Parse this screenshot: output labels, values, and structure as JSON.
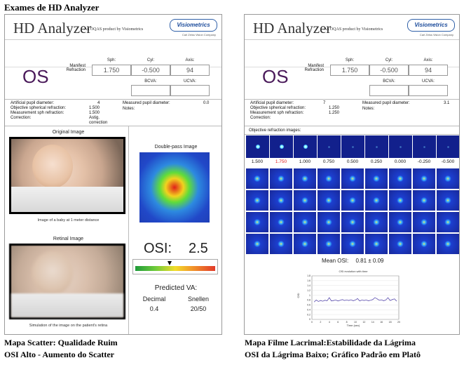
{
  "page": {
    "title": "Exames de HD Analyzer"
  },
  "left": {
    "header": {
      "title": "HD Analyzer",
      "subtitle": "An OQAS product by Visiometrics",
      "logo": "Visiometrics",
      "logo_sub": "Carl Zeiss Vision Company"
    },
    "eye": "OS",
    "refraction_label": "Manifest Refraction",
    "sph_label": "Sph:",
    "cyl_label": "Cyl:",
    "axis_label": "Axis:",
    "sph": "1.750",
    "cyl": "-0.500",
    "axis": "94",
    "bcva_label": "BCVA:",
    "ucva_label": "UCVA:",
    "info": [
      {
        "label": "Artificial pupil diameter:",
        "value": "4"
      },
      {
        "label": "Objective spherical refraction:",
        "value": "1.500"
      },
      {
        "label": "Measurement sph refraction:",
        "value": "1.500"
      },
      {
        "label": "Correction:",
        "value": "Astig. correction"
      }
    ],
    "measured_pupil_label": "Measured pupil diameter:",
    "measured_pupil": "0.0",
    "notes_label": "Notes:",
    "original_title": "Original Image",
    "original_caption": "Image of a baby at 1 meter distance",
    "retinal_title": "Retinal Image",
    "retinal_caption": "Simulation of the image on the patient's retina",
    "doublepass_title": "Double-pass Image",
    "osi_label": "OSI:",
    "osi_value": "2.5",
    "predicted_label": "Predicted VA:",
    "decimal_label": "Decimal",
    "snellen_label": "Snellen",
    "decimal_value": "0.4",
    "snellen_value": "20/50",
    "caption1": "Mapa Scatter: Qualidade Ruim",
    "caption2": "OSI Alto - Aumento do Scatter"
  },
  "right": {
    "header": {
      "title": "HD Analyzer",
      "subtitle": "An OQAS product by Visiometrics",
      "logo": "Visiometrics",
      "logo_sub": "Carl Zeiss Vision Company"
    },
    "eye": "OS",
    "refraction_label": "Manifest Refraction",
    "sph_label": "Sph:",
    "cyl_label": "Cyl:",
    "axis_label": "Axis:",
    "sph": "1.750",
    "cyl": "-0.500",
    "axis": "94",
    "bcva_label": "BCVA:",
    "ucva_label": "UCVA:",
    "info": [
      {
        "label": "Artificial pupil diameter:",
        "value": "7"
      },
      {
        "label": "Objective spherical refraction:",
        "value": "1.250"
      },
      {
        "label": "Measurement sph refraction:",
        "value": "1.250"
      },
      {
        "label": "Correction:",
        "value": ""
      }
    ],
    "measured_pupil_label": "Measured pupil diameter:",
    "measured_pupil": "3.1",
    "notes_label": "Notes:",
    "objective_label": "Objective refraction images:",
    "refraction_steps": [
      "1.500",
      "1.750",
      "1.000",
      "0.750",
      "0.500",
      "0.250",
      "0.000",
      "-0.250",
      "-0.500"
    ],
    "highlight_step": "1.750",
    "mean_osi_label": "Mean OSI:",
    "mean_osi_value": "0.81",
    "mean_osi_pm": "±",
    "mean_osi_sd": "0.09",
    "chart_title": "OSI evolution with time",
    "chart_xlabel": "Time (sec)",
    "chart_ylabel": "OSI",
    "caption1": "Mapa Filme Lacrimal:Estabilidade da Lágrima",
    "caption2": "OSI da Lágrima Baixo; Gráfico Padrão em Platô"
  },
  "chart_data": {
    "type": "line",
    "title": "OSI evolution with time",
    "xlabel": "Time (sec)",
    "ylabel": "OSI",
    "xlim": [
      0,
      20
    ],
    "ylim": [
      0,
      1.8
    ],
    "xticks": [
      0,
      2,
      4,
      6,
      8,
      10,
      12,
      14,
      16,
      18,
      20
    ],
    "yticks": [
      0,
      0.2,
      0.4,
      0.6,
      0.8,
      1,
      1.2,
      1.4,
      1.6,
      1.8
    ],
    "series": [
      {
        "x": [
          0.5,
          1,
          1.5,
          2,
          2.5,
          3,
          3.5,
          4,
          4.5,
          5,
          5.5,
          6,
          6.5,
          7,
          7.5,
          8,
          8.5,
          9,
          9.5,
          10,
          10.5,
          11,
          11.5,
          12,
          12.5,
          13,
          13.5,
          14,
          14.5,
          15,
          15.5,
          16,
          16.5,
          17,
          17.5,
          18,
          18.5,
          19,
          19.5
        ],
        "values": [
          0.72,
          0.8,
          0.74,
          0.78,
          0.75,
          0.79,
          0.77,
          0.9,
          0.76,
          0.78,
          0.8,
          0.76,
          0.79,
          0.82,
          0.78,
          0.8,
          0.78,
          0.81,
          0.77,
          0.8,
          0.86,
          0.76,
          0.8,
          0.78,
          0.8,
          0.77,
          0.79,
          0.82,
          0.9,
          0.85,
          0.79,
          0.81,
          0.77,
          0.8,
          0.9,
          0.78,
          0.82,
          0.85,
          0.75
        ]
      }
    ]
  }
}
